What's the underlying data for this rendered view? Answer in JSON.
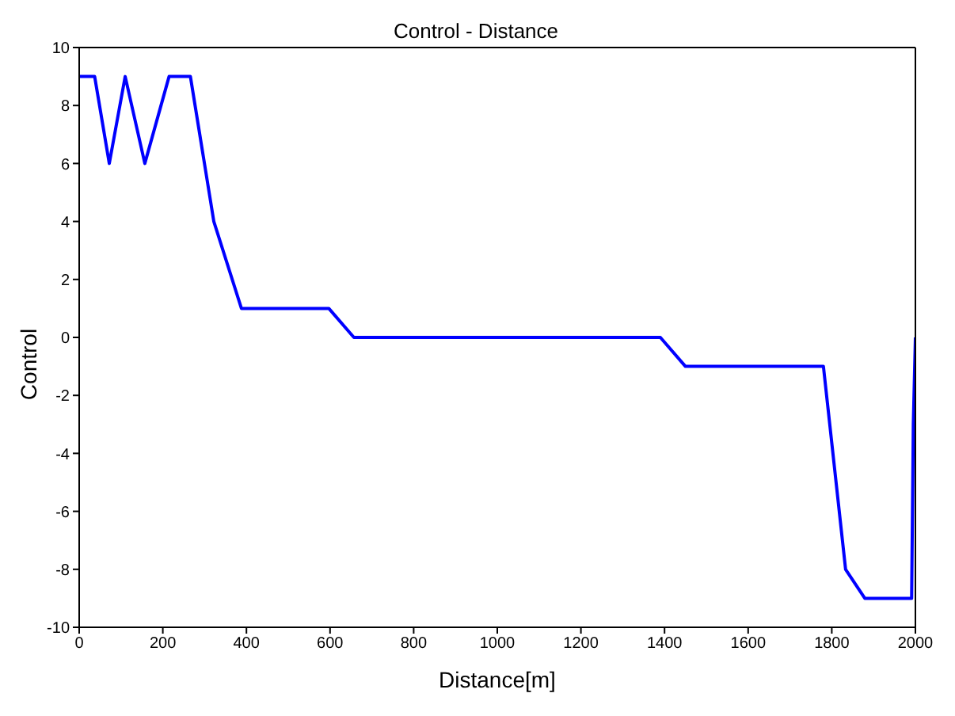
{
  "chart_data": {
    "type": "line",
    "title": "Control - Distance",
    "xlabel": "Distance[m]",
    "ylabel": "Control",
    "x": [
      0,
      37,
      72,
      110,
      157,
      215,
      266,
      322,
      388,
      597,
      657,
      1390,
      1450,
      1780,
      1833,
      1879,
      1991,
      1995,
      2000
    ],
    "series": [
      {
        "color": "#0000ff",
        "values": [
          9,
          9,
          6,
          9,
          6,
          9,
          9,
          4,
          1,
          1,
          0,
          0,
          -1,
          -1,
          -8,
          -9,
          -9,
          -3,
          0
        ]
      }
    ],
    "xlim": [
      0,
      2000
    ],
    "xticks": [
      0,
      200,
      400,
      600,
      800,
      1000,
      1200,
      1400,
      1600,
      1800,
      2000
    ],
    "ylim": [
      -10,
      10
    ],
    "yticks": [
      -10,
      -8,
      -6,
      -4,
      -2,
      0,
      2,
      4,
      6,
      8,
      10
    ],
    "grid": false,
    "legend": false,
    "marker": "none",
    "line_style": "solid"
  }
}
